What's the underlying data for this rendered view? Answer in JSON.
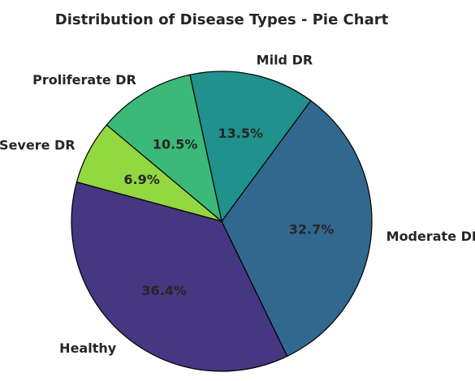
{
  "chart_data": {
    "type": "pie",
    "title": "Distribution of Disease Types - Pie Chart",
    "start_angle_deg": 140,
    "direction": "counterclockwise",
    "slices": [
      {
        "name": "Severe DR",
        "value": 6.9,
        "label": "6.9%",
        "color": "#93d741"
      },
      {
        "name": "Healthy",
        "value": 36.4,
        "label": "36.4%",
        "color": "#453781"
      },
      {
        "name": "Moderate DR",
        "value": 32.7,
        "label": "32.7%",
        "color": "#32688e"
      },
      {
        "name": "Mild DR",
        "value": 13.5,
        "label": "13.5%",
        "color": "#20918c"
      },
      {
        "name": "Proliferate DR",
        "value": 10.5,
        "label": "10.5%",
        "color": "#3bb978"
      }
    ]
  }
}
